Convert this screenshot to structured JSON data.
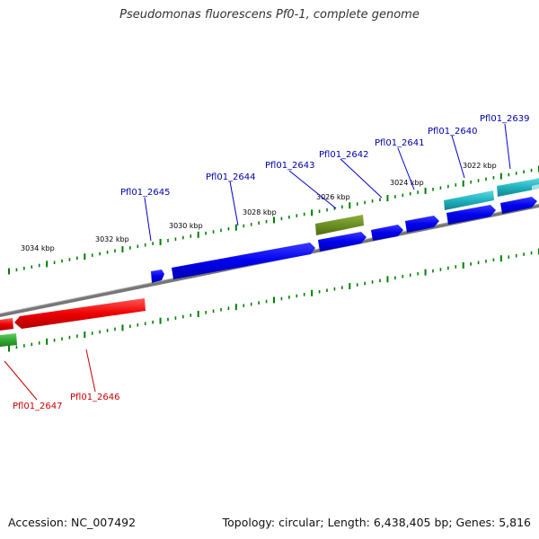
{
  "title": "Pseudomonas fluorescens Pf0-1, complete genome",
  "footer": {
    "accession": "Accession: NC_007492",
    "topology": "Topology: circular; Length: 6,438,405 bp; Genes: 5,816"
  },
  "colors": {
    "forward_gene": "#0000ee",
    "reverse_gene": "#ee0000",
    "highlight_gene": "#6b8e23",
    "cyan_gene": "#20b2c0",
    "green_gene": "#33aa33",
    "backbone": "#888888",
    "tick": "#008000",
    "forward_label": "#0000aa",
    "reverse_label": "#cc0000"
  },
  "kbp_ticks": [
    {
      "label": "3022 kbp"
    },
    {
      "label": "3024 kbp"
    },
    {
      "label": "3026 kbp"
    },
    {
      "label": "3028 kbp"
    },
    {
      "label": "3030 kbp"
    },
    {
      "label": "3032 kbp"
    },
    {
      "label": "3034 kbp"
    }
  ],
  "forward_labels": [
    {
      "name": "Pfl01_2639"
    },
    {
      "name": "Pfl01_2640"
    },
    {
      "name": "Pfl01_2641"
    },
    {
      "name": "Pfl01_2642"
    },
    {
      "name": "Pfl01_2643"
    },
    {
      "name": "Pfl01_2644"
    },
    {
      "name": "Pfl01_2645"
    }
  ],
  "reverse_labels": [
    {
      "name": "Pfl01_2646"
    },
    {
      "name": "Pfl01_2647"
    }
  ]
}
